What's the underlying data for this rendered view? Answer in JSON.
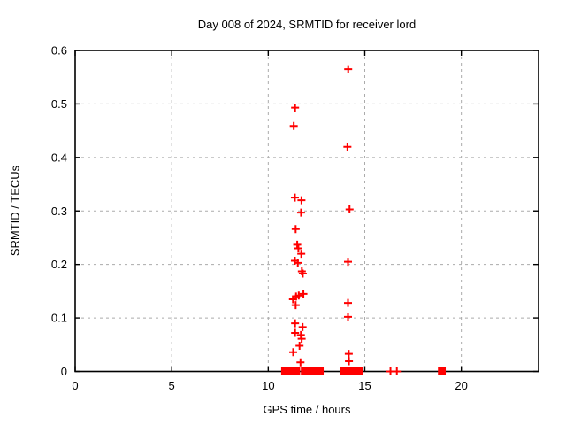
{
  "window": {
    "background": "#ffffff"
  },
  "chart_data": {
    "type": "scatter",
    "title": "Day 008 of 2024, SRMTID for receiver lord",
    "xlabel": "GPS time / hours",
    "ylabel": "SRMTID / TECUs",
    "xlim": [
      0,
      24
    ],
    "ylim": [
      0,
      0.6
    ],
    "xticks": [
      0,
      5,
      10,
      15,
      20
    ],
    "xtick_labels": [
      "0",
      "5",
      "10",
      "15",
      "20"
    ],
    "yticks": [
      0,
      0.1,
      0.2,
      0.3,
      0.4,
      0.5,
      0.6
    ],
    "ytick_labels": [
      "0",
      "0.1",
      "0.2",
      "0.3",
      "0.4",
      "0.5",
      "0.6"
    ],
    "grid": true,
    "legend_position": "none",
    "marker": "plus",
    "marker_color": "#ff0000",
    "grid_color": "#ababab",
    "frame_color": "#000000",
    "series": [
      {
        "name": "SRMTID",
        "points": [
          [
            11.32,
            0.459
          ],
          [
            11.39,
            0.493
          ],
          [
            11.38,
            0.325
          ],
          [
            11.72,
            0.32
          ],
          [
            11.7,
            0.297
          ],
          [
            11.42,
            0.266
          ],
          [
            11.5,
            0.237
          ],
          [
            11.56,
            0.23
          ],
          [
            11.71,
            0.22
          ],
          [
            11.38,
            0.207
          ],
          [
            11.53,
            0.203
          ],
          [
            11.74,
            0.187
          ],
          [
            11.79,
            0.183
          ],
          [
            11.28,
            0.135
          ],
          [
            11.44,
            0.14
          ],
          [
            11.58,
            0.142
          ],
          [
            11.82,
            0.145
          ],
          [
            11.42,
            0.124
          ],
          [
            11.39,
            0.09
          ],
          [
            11.78,
            0.083
          ],
          [
            11.39,
            0.072
          ],
          [
            11.69,
            0.068
          ],
          [
            11.73,
            0.061
          ],
          [
            11.62,
            0.048
          ],
          [
            11.29,
            0.036
          ],
          [
            11.67,
            0.017
          ],
          [
            14.1,
            0.42
          ],
          [
            14.14,
            0.565
          ],
          [
            14.21,
            0.303
          ],
          [
            14.13,
            0.205
          ],
          [
            14.13,
            0.128
          ],
          [
            14.13,
            0.102
          ],
          [
            14.17,
            0.033
          ],
          [
            14.18,
            0.019
          ],
          [
            16.33,
            0.0
          ],
          [
            16.66,
            0.0
          ]
        ]
      }
    ],
    "zero_value_runs": [
      {
        "x_start": 10.76,
        "x_end": 11.56
      },
      {
        "x_start": 11.78,
        "x_end": 12.08
      },
      {
        "x_start": 12.24,
        "x_end": 12.78
      },
      {
        "x_start": 13.82,
        "x_end": 13.99
      },
      {
        "x_start": 14.05,
        "x_end": 14.84
      },
      {
        "x_start": 18.88,
        "x_end": 19.1
      }
    ]
  }
}
